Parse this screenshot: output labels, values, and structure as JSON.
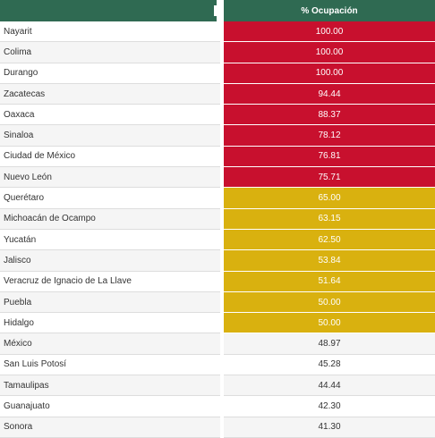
{
  "header": {
    "occupancy_label": "% Ocupación"
  },
  "rows": [
    {
      "state": "Nayarit",
      "value": "100.00",
      "level": "red"
    },
    {
      "state": "Colima",
      "value": "100.00",
      "level": "red"
    },
    {
      "state": "Durango",
      "value": "100.00",
      "level": "red"
    },
    {
      "state": "Zacatecas",
      "value": "94.44",
      "level": "red"
    },
    {
      "state": "Oaxaca",
      "value": "88.37",
      "level": "red"
    },
    {
      "state": "Sinaloa",
      "value": "78.12",
      "level": "red"
    },
    {
      "state": "Ciudad de México",
      "value": "76.81",
      "level": "red"
    },
    {
      "state": "Nuevo León",
      "value": "75.71",
      "level": "red"
    },
    {
      "state": "Querétaro",
      "value": "65.00",
      "level": "yellow"
    },
    {
      "state": "Michoacán de Ocampo",
      "value": "63.15",
      "level": "yellow"
    },
    {
      "state": "Yucatán",
      "value": "62.50",
      "level": "yellow"
    },
    {
      "state": "Jalisco",
      "value": "53.84",
      "level": "yellow"
    },
    {
      "state": "Veracruz de Ignacio de La Llave",
      "value": "51.64",
      "level": "yellow"
    },
    {
      "state": "Puebla",
      "value": "50.00",
      "level": "yellow"
    },
    {
      "state": "Hidalgo",
      "value": "50.00",
      "level": "yellow"
    },
    {
      "state": "México",
      "value": "48.97",
      "level": "plain"
    },
    {
      "state": "San Luis Potosí",
      "value": "45.28",
      "level": "plain"
    },
    {
      "state": "Tamaulipas",
      "value": "44.44",
      "level": "plain"
    },
    {
      "state": "Guanajuato",
      "value": "42.30",
      "level": "plain"
    },
    {
      "state": "Sonora",
      "value": "41.30",
      "level": "plain"
    }
  ],
  "colors": {
    "header": "#2f6a52",
    "red": "#c8102e",
    "yellow": "#d9b10f"
  }
}
